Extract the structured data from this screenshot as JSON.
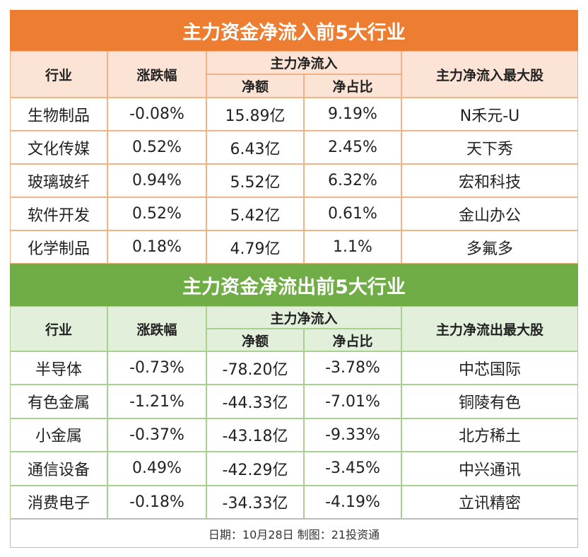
{
  "sections": [
    {
      "title": "主力资金净流入前5大行业",
      "header": {
        "industry": "行业",
        "change": "涨跌幅",
        "flow": "主力净流入",
        "amount": "净额",
        "ratio": "净占比",
        "top_stock": "主力净流入最大股"
      },
      "rows": [
        [
          "生物制品",
          "-0.08%",
          "15.89亿",
          "9.19%",
          "N禾元-U"
        ],
        [
          "文化传媒",
          "0.52%",
          "6.43亿",
          "2.45%",
          "天下秀"
        ],
        [
          "玻璃玻纤",
          "0.94%",
          "5.52亿",
          "6.32%",
          "宏和科技"
        ],
        [
          "软件开发",
          "0.52%",
          "5.42亿",
          "0.61%",
          "金山办公"
        ],
        [
          "化学制品",
          "0.18%",
          "4.79亿",
          "1.1%",
          "多氟多"
        ]
      ]
    },
    {
      "title": "主力资金净流出前5大行业",
      "header": {
        "industry": "行业",
        "change": "涨跌幅",
        "flow": "主力净流入",
        "amount": "净额",
        "ratio": "净占比",
        "top_stock": "主力净流出最大股"
      },
      "rows": [
        [
          "半导体",
          "-0.73%",
          "-78.20亿",
          "-3.78%",
          "中芯国际"
        ],
        [
          "有色金属",
          "-1.21%",
          "-44.33亿",
          "-7.01%",
          "铜陵有色"
        ],
        [
          "小金属",
          "-0.37%",
          "-43.18亿",
          "-9.33%",
          "北方稀土"
        ],
        [
          "通信设备",
          "0.49%",
          "-42.29亿",
          "-3.45%",
          "中兴通讯"
        ],
        [
          "消费电子",
          "-0.18%",
          "-34.33亿",
          "-4.19%",
          "立讯精密"
        ]
      ]
    }
  ],
  "footer": "日期：10月28日 制图：21投资通"
}
